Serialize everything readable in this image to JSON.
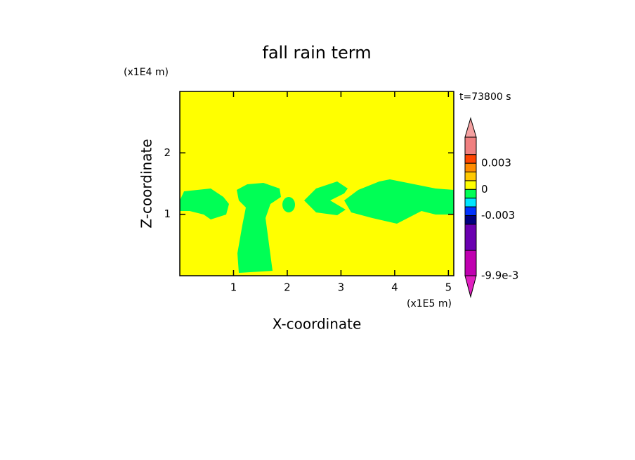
{
  "chart_data": {
    "type": "contour",
    "title": "fall rain term",
    "xlabel": "X-coordinate",
    "ylabel": "Z-coordinate",
    "x_unit": "(x1E5 m)",
    "y_unit": "(x1E4 m)",
    "annotation": "t=73800 s",
    "xlim": [
      0,
      5.1
    ],
    "ylim": [
      0,
      3
    ],
    "xticks": [
      1,
      2,
      3,
      4,
      5
    ],
    "yticks": [
      1,
      2
    ],
    "background_color": "#ffff00",
    "region_color": "#00ff55",
    "colorbar": {
      "levels": [
        0.006,
        0.004,
        0.003,
        0.002,
        0.001,
        0,
        -0.001,
        -0.002,
        -0.003,
        -0.004,
        -0.007,
        -0.0099
      ],
      "colors": [
        "#f08080",
        "#ff4500",
        "#ff8c00",
        "#ffc800",
        "#ffff00",
        "#00ff55",
        "#00e5ff",
        "#0033ff",
        "#000080",
        "#6a00b0",
        "#c000b0"
      ],
      "over_color": "#f4a0a0",
      "under_color": "#e020c0",
      "ticks": [
        {
          "value": 0.003,
          "label": "0.003"
        },
        0,
        {
          "value": -0.003,
          "label": "-0.003"
        },
        {
          "value": -0.0099,
          "label": "-9.9e-3"
        }
      ]
    }
  }
}
